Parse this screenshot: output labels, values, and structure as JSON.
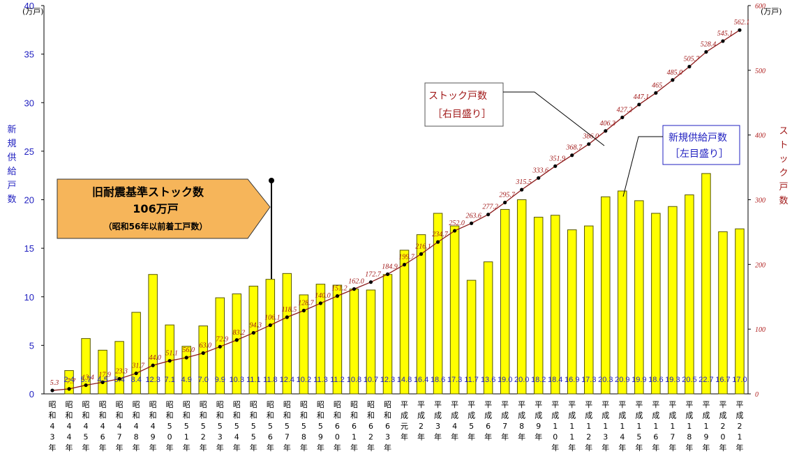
{
  "chart_data": {
    "type": "bar+line",
    "categories": [
      "昭和43年",
      "昭和44年",
      "昭和45年",
      "昭和46年",
      "昭和47年",
      "昭和48年",
      "昭和49年",
      "昭和50年",
      "昭和51年",
      "昭和52年",
      "昭和53年",
      "昭和54年",
      "昭和55年",
      "昭和56年",
      "昭和57年",
      "昭和58年",
      "昭和59年",
      "昭和60年",
      "昭和61年",
      "昭和62年",
      "昭和63年",
      "平成元年",
      "平成2年",
      "平成3年",
      "平成4年",
      "平成5年",
      "平成6年",
      "平成7年",
      "平成8年",
      "平成9年",
      "平成10年",
      "平成11年",
      "平成12年",
      "平成13年",
      "平成14年",
      "平成15年",
      "平成16年",
      "平成17年",
      "平成18年",
      "平成19年",
      "平成20年",
      "平成21年"
    ],
    "series": [
      {
        "name": "新規供給戸数",
        "axis": "left",
        "values": [
          null,
          2.4,
          5.7,
          4.5,
          5.4,
          8.4,
          12.3,
          7.1,
          4.9,
          7.0,
          9.9,
          10.3,
          11.1,
          11.8,
          12.4,
          10.2,
          11.3,
          11.2,
          10.8,
          10.7,
          12.3,
          14.8,
          16.4,
          18.6,
          17.3,
          11.7,
          13.6,
          19.0,
          20.0,
          18.2,
          18.4,
          16.9,
          17.3,
          20.3,
          20.9,
          19.9,
          18.6,
          19.3,
          20.5,
          22.7,
          16.7,
          17.0
        ],
        "labels": [
          "",
          "2.4",
          "5.7",
          "4.5",
          "5.4",
          "8.4",
          "12.3",
          "7.1",
          "4.9",
          "7.0",
          "9.9",
          "10.3",
          "11.1",
          "11.8",
          "12.4",
          "10.2",
          "11.3",
          "11.2",
          "10.8",
          "10.7",
          "12.3",
          "14.8",
          "16.4",
          "18.6",
          "17.3",
          "11.7",
          "13.6",
          "19.0",
          "20.0",
          "18.2",
          "18.4",
          "16.9",
          "17.3",
          "20.3",
          "20.9",
          "19.9",
          "18.6",
          "19.3",
          "20.5",
          "22.7",
          "16.7",
          "17.0"
        ]
      },
      {
        "name": "ストック戸数",
        "axis": "right",
        "values": [
          5.3,
          7.7,
          13.4,
          17.9,
          23.3,
          31.7,
          44.0,
          51.1,
          56.0,
          63.0,
          72.9,
          83.2,
          94.3,
          106.1,
          118.5,
          128.7,
          140.0,
          151.2,
          162.0,
          172.7,
          184.9,
          199.7,
          216.1,
          234.7,
          252.0,
          263.6,
          277.2,
          295.7,
          315.5,
          333.6,
          351.9,
          368.7,
          386.0,
          406.3,
          427.2,
          447.1,
          465.0,
          485.0,
          505.7,
          528.4,
          545.1,
          562.1
        ],
        "labels": [
          "5.3",
          "7.7",
          "13.4",
          "17.9",
          "23.3",
          "31.7",
          "44.0",
          "51.1",
          "56.0",
          "63.0",
          "72.9",
          "83.2",
          "94.3",
          "106.1",
          "118.5",
          "128.7",
          "140.0",
          "151.2",
          "162.0",
          "172.7",
          "184.9",
          "199.7",
          "216.1",
          "234.7",
          "252.0",
          "263.6",
          "277.2",
          "295.7",
          "315.5",
          "333.6",
          "351.9",
          "368.7",
          "386.0",
          "406.3",
          "427.2",
          "447.1",
          "465.",
          "485.0",
          "505.7",
          "528.4",
          "545.1",
          "562.1"
        ]
      }
    ],
    "left_axis": {
      "ylim": [
        0,
        40
      ],
      "ticks": [
        "0",
        "5",
        "10",
        "15",
        "20",
        "25",
        "30",
        "35",
        "40"
      ],
      "unit": "(万戸)",
      "title": "新規供給戸数"
    },
    "right_axis": {
      "ylim": [
        0,
        600
      ],
      "ticks": [
        "0",
        "100",
        "200",
        "300",
        "400",
        "500",
        "600"
      ],
      "unit": "(万戸)",
      "title": "ストック戸数"
    },
    "grid": false,
    "colors": {
      "bar": "#ffff00",
      "bar_edge": "#555500",
      "line": "#8b1a1a",
      "left_text": "#2020c0",
      "right_text": "#a01818",
      "callout": "#f6b55a"
    },
    "annotations": {
      "stock_box": [
        "ストック戸数",
        "［右目盛り］"
      ],
      "new_box": [
        "新規供給戸数",
        "［左目盛り］"
      ],
      "callout": {
        "line1": "旧耐震基準ストック数",
        "line2": "106万戸",
        "line3": "（昭和56年以前着工戸数）",
        "pointer_category": "昭和56年"
      }
    }
  }
}
